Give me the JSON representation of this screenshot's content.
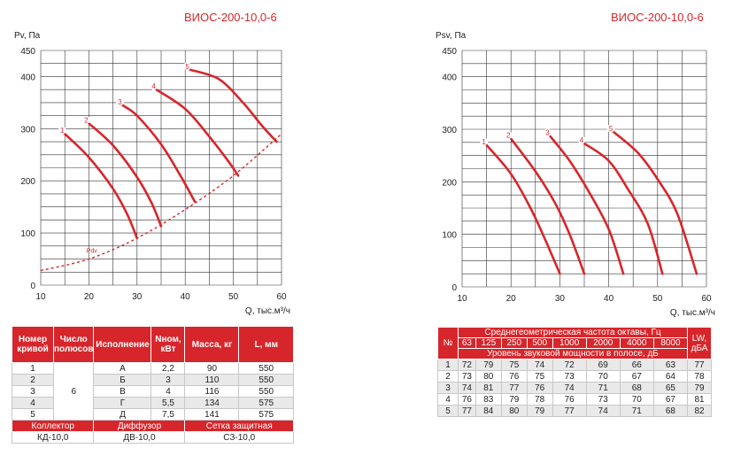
{
  "chart_data": [
    {
      "type": "line",
      "title": "ВИОС-200-10,0-6",
      "ylabel": "Pv, Па",
      "xlabel": "Q, тыс.м³/ч",
      "xlim": [
        10,
        60
      ],
      "ylim": [
        0,
        450
      ],
      "xticks": [
        "10",
        "20",
        "30",
        "40",
        "50",
        "60"
      ],
      "yticks": [
        "0",
        "100",
        "200",
        "300",
        "400",
        "450"
      ],
      "grid": true,
      "series": [
        {
          "name": "1",
          "x": [
            15,
            20,
            25,
            28,
            30
          ],
          "y": [
            290,
            245,
            185,
            135,
            90
          ]
        },
        {
          "name": "2",
          "x": [
            20,
            25,
            30,
            33,
            35
          ],
          "y": [
            310,
            268,
            207,
            158,
            113
          ]
        },
        {
          "name": "3",
          "x": [
            27,
            30,
            35,
            39,
            42
          ],
          "y": [
            345,
            325,
            270,
            210,
            160
          ]
        },
        {
          "name": "4",
          "x": [
            34,
            40,
            45,
            49,
            51
          ],
          "y": [
            375,
            338,
            285,
            237,
            210
          ]
        },
        {
          "name": "5",
          "x": [
            41,
            47,
            52,
            56,
            59
          ],
          "y": [
            413,
            395,
            350,
            305,
            275
          ]
        }
      ],
      "pdv": {
        "name": "Pdv",
        "x": [
          10,
          20,
          30,
          40,
          50,
          60
        ],
        "y": [
          28,
          50,
          90,
          145,
          210,
          290
        ]
      }
    },
    {
      "type": "line",
      "title": "ВИОС-200-10,0-6",
      "ylabel": "Psv, Па",
      "xlabel": "Q, тыс.м³/ч",
      "xlim": [
        10,
        60
      ],
      "ylim": [
        0,
        450
      ],
      "xticks": [
        "10",
        "20",
        "30",
        "40",
        "50",
        "60"
      ],
      "yticks": [
        "0",
        "100",
        "200",
        "300",
        "400",
        "450"
      ],
      "grid": true,
      "series": [
        {
          "name": "1",
          "x": [
            15,
            20,
            24,
            27,
            30
          ],
          "y": [
            270,
            215,
            150,
            90,
            25
          ]
        },
        {
          "name": "2",
          "x": [
            20,
            25,
            29,
            32,
            35
          ],
          "y": [
            282,
            220,
            160,
            100,
            25
          ]
        },
        {
          "name": "3",
          "x": [
            28,
            32,
            36,
            40,
            43
          ],
          "y": [
            287,
            240,
            180,
            110,
            25
          ]
        },
        {
          "name": "4",
          "x": [
            35,
            40,
            44,
            48,
            51
          ],
          "y": [
            273,
            240,
            185,
            120,
            25
          ]
        },
        {
          "name": "5",
          "x": [
            41,
            46,
            50,
            54,
            58
          ],
          "y": [
            295,
            255,
            205,
            140,
            25
          ]
        }
      ]
    }
  ],
  "spec_table": {
    "headers": [
      "Номер кривой",
      "Число полюсов",
      "Исполнение",
      "Nном, кВт",
      "Масса, кг",
      "L, мм"
    ],
    "poles": "6",
    "rows": [
      [
        "1",
        "А",
        "2,2",
        "90",
        "550"
      ],
      [
        "2",
        "Б",
        "3",
        "110",
        "550"
      ],
      [
        "3",
        "В",
        "4",
        "116",
        "550"
      ],
      [
        "4",
        "Г",
        "5,5",
        "134",
        "575"
      ],
      [
        "5",
        "Д",
        "7,5",
        "141",
        "575"
      ]
    ],
    "acc_headers": [
      "Коллектор",
      "Диффузор",
      "Сетка защитная"
    ],
    "acc_values": [
      "КД-10,0",
      "ДВ-10,0",
      "СЗ-10,0"
    ]
  },
  "noise_table": {
    "no_label": "№",
    "freq_title": "Среднегеометрическая частота октавы, Гц",
    "freqs": [
      "63",
      "125",
      "250",
      "500",
      "1000",
      "2000",
      "4000",
      "8000"
    ],
    "level_title": "Уровень звуковой мощности в полосе, дБ",
    "lw_label": "LW, дБА",
    "rows": [
      [
        "1",
        "72",
        "79",
        "75",
        "74",
        "72",
        "69",
        "66",
        "63",
        "77"
      ],
      [
        "2",
        "73",
        "80",
        "76",
        "75",
        "73",
        "70",
        "67",
        "64",
        "78"
      ],
      [
        "3",
        "74",
        "81",
        "77",
        "76",
        "74",
        "71",
        "68",
        "65",
        "79"
      ],
      [
        "4",
        "76",
        "83",
        "79",
        "78",
        "76",
        "73",
        "70",
        "67",
        "81"
      ],
      [
        "5",
        "77",
        "84",
        "80",
        "79",
        "77",
        "74",
        "71",
        "68",
        "82"
      ]
    ]
  }
}
